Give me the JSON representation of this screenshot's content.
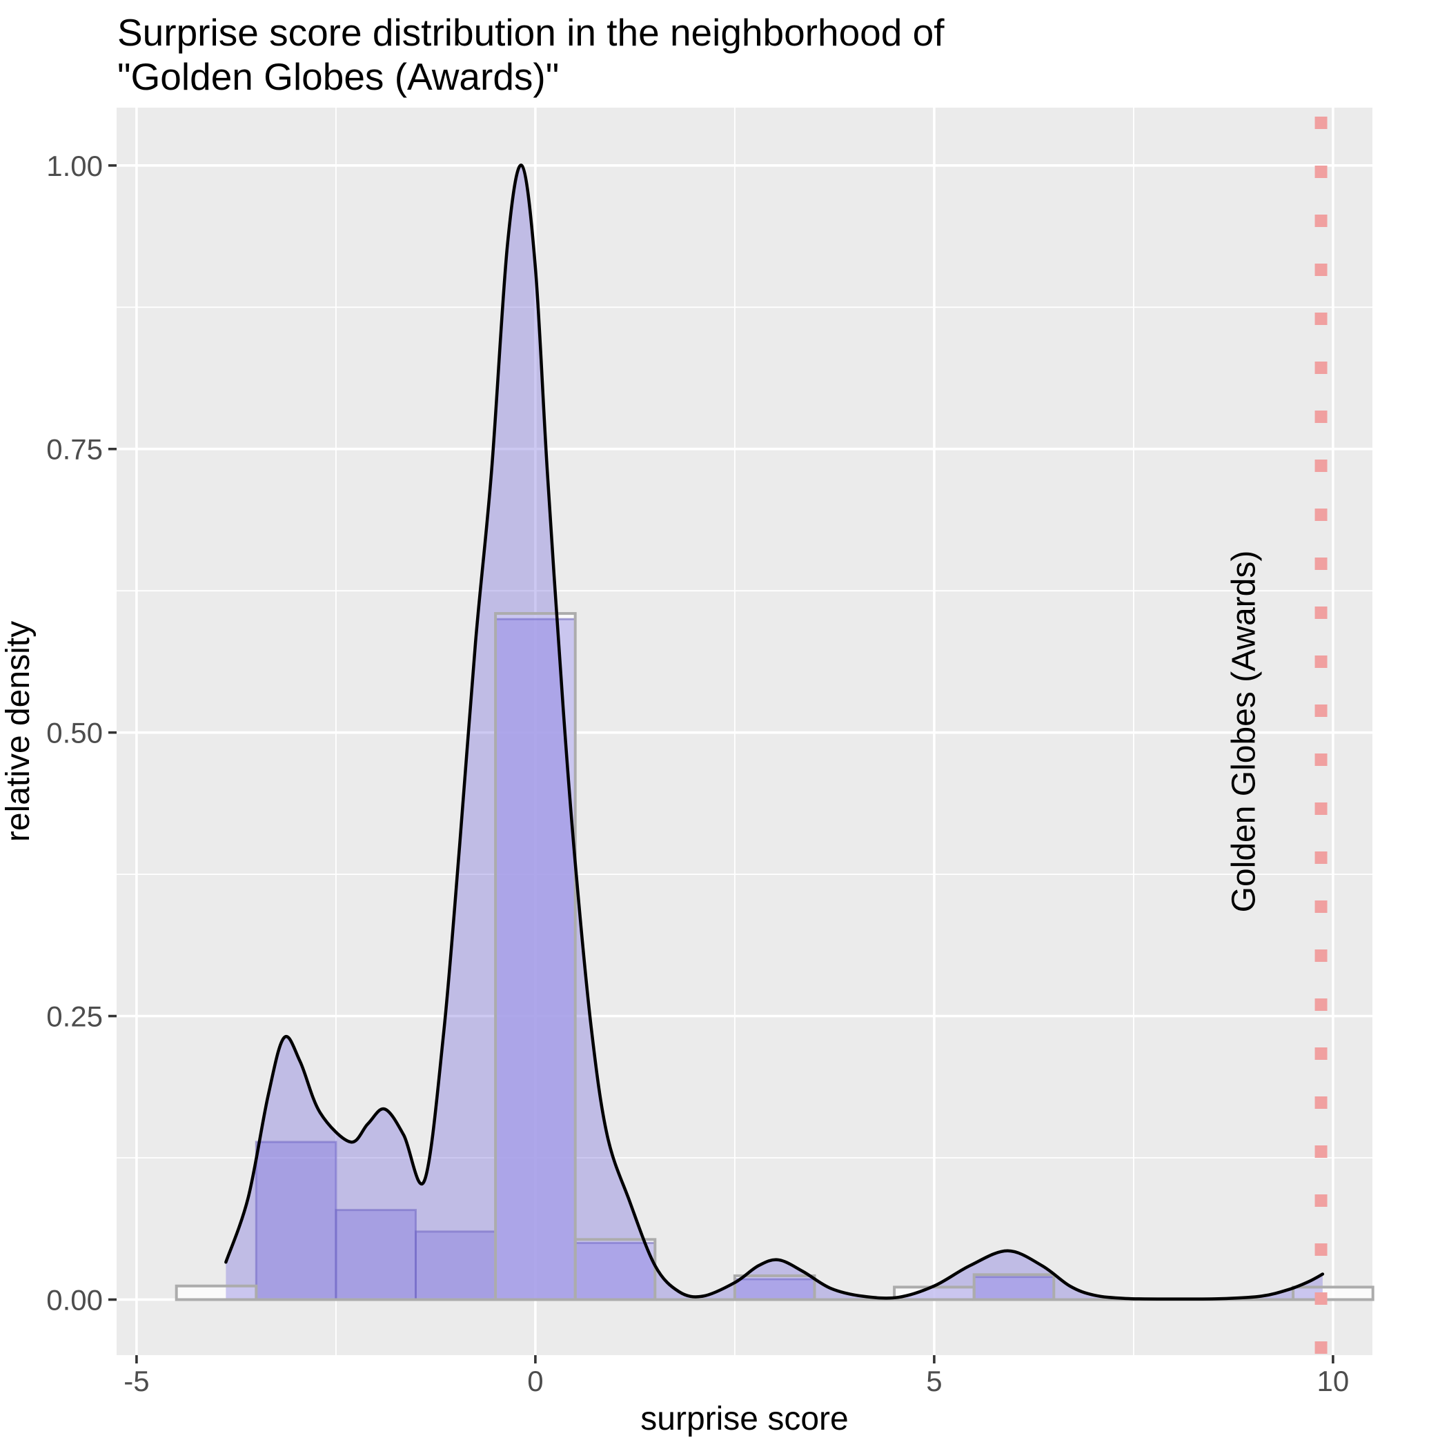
{
  "title": {
    "line1": "Surprise score distribution in the neighborhood of",
    "line2": "\"Golden Globes (Awards)\""
  },
  "chart_data": {
    "type": "area",
    "title": "Surprise score distribution in the neighborhood of \"Golden Globes (Awards)\"",
    "xlabel": "surprise score",
    "ylabel": "relative density",
    "xlim": [
      -5.25,
      10.494
    ],
    "ylim": [
      -0.049,
      1.051
    ],
    "grid": "on",
    "panel_background": "#EBEBEB",
    "gridline_color": "#FFFFFF",
    "x_ticks": [
      {
        "v": -5,
        "label": "-5"
      },
      {
        "v": 0,
        "label": "0"
      },
      {
        "v": 5,
        "label": "5"
      },
      {
        "v": 10,
        "label": "10"
      }
    ],
    "x_minor_ticks": [
      -2.5,
      2.5,
      7.5
    ],
    "y_ticks": [
      {
        "v": 0.0,
        "label": "0.00"
      },
      {
        "v": 0.25,
        "label": "0.25"
      },
      {
        "v": 0.5,
        "label": "0.50"
      },
      {
        "v": 0.75,
        "label": "0.75"
      },
      {
        "v": 1.0,
        "label": "1.00"
      }
    ],
    "y_minor_ticks": [
      0.125,
      0.375,
      0.625,
      0.875
    ],
    "density_curve": {
      "color": "#000000",
      "fill": "rgba(124,114,220,0.38)",
      "points": [
        [
          -3.88,
          0.033
        ],
        [
          -3.6,
          0.09
        ],
        [
          -3.35,
          0.18
        ],
        [
          -3.15,
          0.231
        ],
        [
          -2.95,
          0.21
        ],
        [
          -2.7,
          0.165
        ],
        [
          -2.32,
          0.139
        ],
        [
          -2.1,
          0.155
        ],
        [
          -1.89,
          0.168
        ],
        [
          -1.65,
          0.145
        ],
        [
          -1.39,
          0.105
        ],
        [
          -1.15,
          0.235
        ],
        [
          -0.95,
          0.4
        ],
        [
          -0.75,
          0.58
        ],
        [
          -0.55,
          0.73
        ],
        [
          -0.35,
          0.93
        ],
        [
          -0.17,
          1.0
        ],
        [
          0.0,
          0.91
        ],
        [
          0.15,
          0.73
        ],
        [
          0.35,
          0.52
        ],
        [
          0.5,
          0.385
        ],
        [
          0.7,
          0.24
        ],
        [
          0.9,
          0.145
        ],
        [
          1.18,
          0.087
        ],
        [
          1.5,
          0.03
        ],
        [
          1.8,
          0.007
        ],
        [
          2.1,
          0.003
        ],
        [
          2.5,
          0.015
        ],
        [
          2.8,
          0.03
        ],
        [
          3.05,
          0.035
        ],
        [
          3.35,
          0.025
        ],
        [
          3.7,
          0.01
        ],
        [
          4.1,
          0.003
        ],
        [
          4.55,
          0.002
        ],
        [
          5.0,
          0.012
        ],
        [
          5.45,
          0.03
        ],
        [
          5.92,
          0.043
        ],
        [
          6.35,
          0.03
        ],
        [
          6.7,
          0.012
        ],
        [
          7.0,
          0.004
        ],
        [
          7.4,
          0.001
        ],
        [
          8.0,
          0.0005
        ],
        [
          8.6,
          0.0008
        ],
        [
          9.1,
          0.003
        ],
        [
          9.45,
          0.009
        ],
        [
          9.7,
          0.016
        ],
        [
          9.87,
          0.0225
        ]
      ]
    },
    "histogram_neighborhood": {
      "fill": "rgba(124,114,220,0.38)",
      "stroke": "rgba(104,94,180,0.55)",
      "bins": [
        {
          "from": -3.5,
          "to": -2.5,
          "height": 0.139
        },
        {
          "from": -2.5,
          "to": -1.5,
          "height": 0.079
        },
        {
          "from": -1.5,
          "to": -0.5,
          "height": 0.06
        },
        {
          "from": -0.5,
          "to": 0.5,
          "height": 0.6
        },
        {
          "from": 0.5,
          "to": 1.5,
          "height": 0.05
        },
        {
          "from": 2.5,
          "to": 3.5,
          "height": 0.018
        },
        {
          "from": 5.5,
          "to": 6.5,
          "height": 0.02
        }
      ]
    },
    "histogram_background": {
      "fill": "rgba(255,255,255,0.72)",
      "stroke": "#ACACAC",
      "baseline_from": -4.5,
      "baseline_to": 10.5,
      "bins": [
        {
          "from": -4.5,
          "to": -3.5,
          "height": 0.012
        },
        {
          "from": -0.5,
          "to": 0.5,
          "height": 0.605
        },
        {
          "from": 0.5,
          "to": 1.5,
          "height": 0.053
        },
        {
          "from": 2.5,
          "to": 3.5,
          "height": 0.021
        },
        {
          "from": 4.5,
          "to": 5.5,
          "height": 0.011
        },
        {
          "from": 5.5,
          "to": 6.5,
          "height": 0.022
        },
        {
          "from": 9.5,
          "to": 10.5,
          "height": 0.011
        }
      ]
    },
    "vline": {
      "x": 9.85,
      "label": "Golden Globes (Awards)",
      "color": "#F0A0A0",
      "style": "dotted"
    }
  }
}
